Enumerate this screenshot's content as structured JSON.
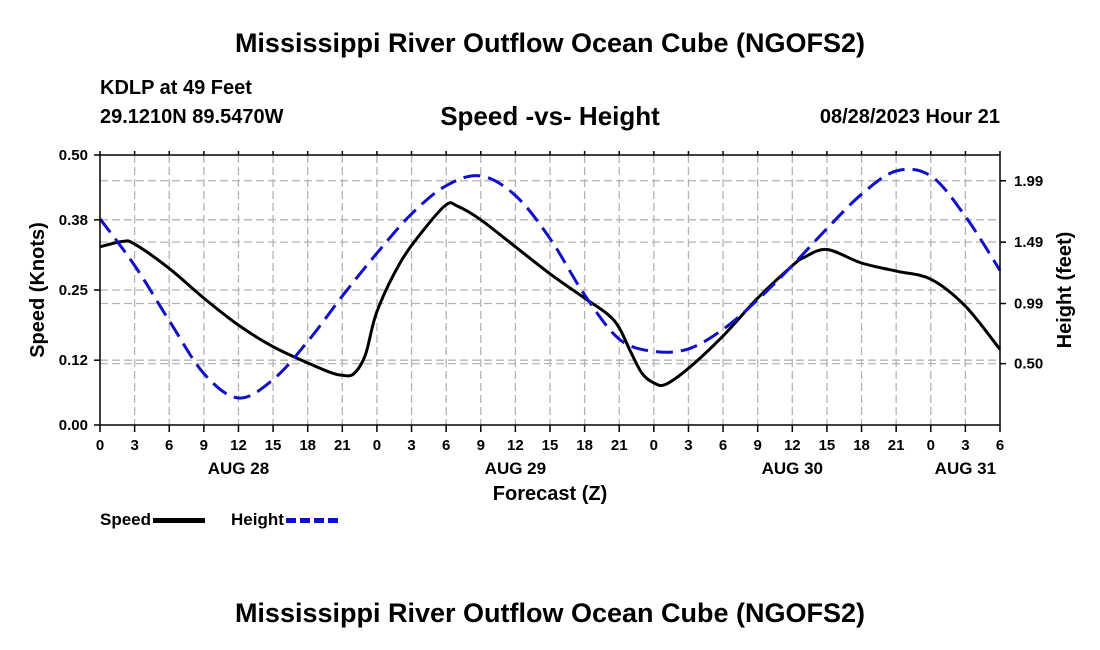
{
  "titles": {
    "main": "Mississippi River Outflow Ocean Cube (NGOFS2)",
    "bottom": "Mississippi River Outflow Ocean Cube (NGOFS2)",
    "station": "KDLP at 49 Feet",
    "coords": "29.1210N  89.5470W",
    "subtitle": "Speed -vs- Height",
    "datetime": "08/28/2023 Hour 21"
  },
  "legend": {
    "speed_label": "Speed",
    "height_label": "Height"
  },
  "colors": {
    "speed": "#000000",
    "height": "#1010c8",
    "grid": "#b4b4b4"
  },
  "chart_data": {
    "type": "line",
    "title": "Speed -vs- Height",
    "xlabel": "Forecast (Z)",
    "ylabel": "Speed (Knots)",
    "y2label": "Height (feet)",
    "x_range_hours": [
      0,
      78
    ],
    "x_tick_step_hours": 3,
    "x_tick_labels": [
      "0",
      "3",
      "6",
      "9",
      "12",
      "15",
      "18",
      "21",
      "0",
      "3",
      "6",
      "9",
      "12",
      "15",
      "18",
      "21",
      "0",
      "3",
      "6",
      "9",
      "12",
      "15",
      "18",
      "21",
      "0",
      "3",
      "6"
    ],
    "date_labels": [
      {
        "hour": 12,
        "label": "AUG 28"
      },
      {
        "hour": 36,
        "label": "AUG 29"
      },
      {
        "hour": 60,
        "label": "AUG 30"
      },
      {
        "hour": 75,
        "label": "AUG 31"
      }
    ],
    "ylim": [
      0,
      0.5
    ],
    "y_ticks": [
      "0.00",
      "0.12",
      "0.25",
      "0.38",
      "0.50"
    ],
    "y2lim": [
      0.0,
      2.2
    ],
    "y2_ticks": [
      "0.50",
      "0.99",
      "1.49",
      "1.99"
    ],
    "grid": true,
    "series": [
      {
        "name": "Speed",
        "axis": "left",
        "style": "solid",
        "x": [
          0,
          2,
          3,
          6,
          9,
          12,
          15,
          18,
          20,
          21,
          22,
          23,
          24,
          26,
          28,
          30,
          31,
          33,
          36,
          39,
          42,
          44,
          45,
          46,
          47,
          48,
          49,
          51,
          54,
          57,
          60,
          61,
          63,
          66,
          69,
          72,
          75,
          78
        ],
        "values": [
          0.33,
          0.34,
          0.335,
          0.29,
          0.235,
          0.185,
          0.145,
          0.115,
          0.097,
          0.092,
          0.095,
          0.13,
          0.21,
          0.3,
          0.36,
          0.408,
          0.405,
          0.38,
          0.33,
          0.28,
          0.235,
          0.205,
          0.18,
          0.135,
          0.095,
          0.078,
          0.075,
          0.105,
          0.165,
          0.235,
          0.295,
          0.31,
          0.325,
          0.3,
          0.285,
          0.27,
          0.22,
          0.14
        ]
      },
      {
        "name": "Height",
        "axis": "right",
        "style": "dashed",
        "x": [
          0,
          3,
          6,
          9,
          12,
          15,
          18,
          21,
          24,
          27,
          30,
          33,
          36,
          39,
          42,
          45,
          48,
          51,
          54,
          57,
          60,
          63,
          66,
          69,
          72,
          75,
          78
        ],
        "values": [
          1.68,
          1.3,
          0.85,
          0.42,
          0.22,
          0.37,
          0.68,
          1.05,
          1.4,
          1.72,
          1.95,
          2.03,
          1.87,
          1.52,
          1.06,
          0.7,
          0.6,
          0.62,
          0.78,
          1.02,
          1.3,
          1.6,
          1.88,
          2.07,
          2.03,
          1.7,
          1.26
        ]
      }
    ]
  }
}
